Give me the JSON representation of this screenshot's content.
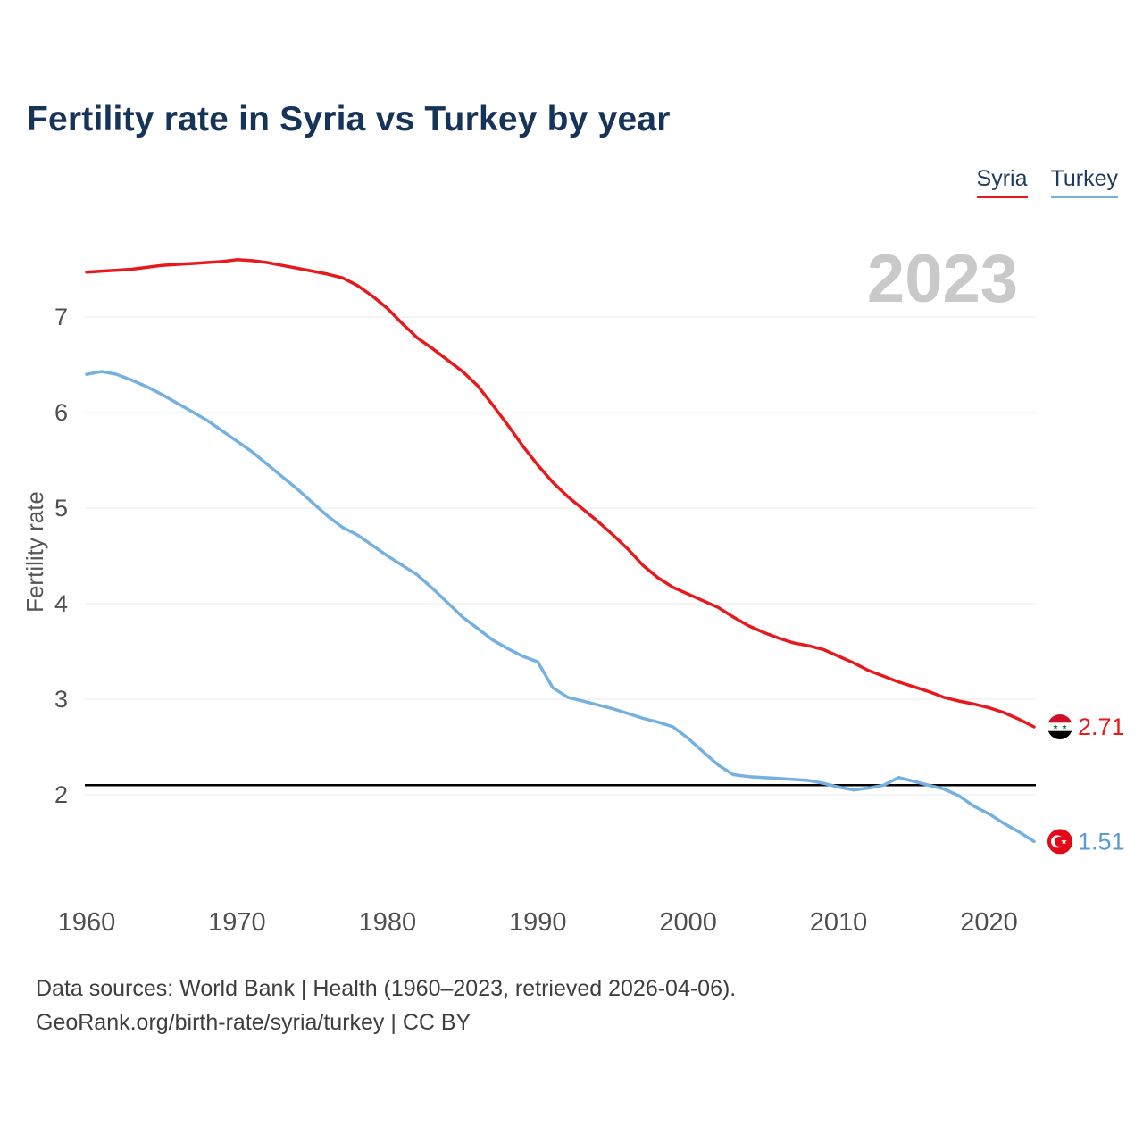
{
  "header": {
    "title": "Fertility rate in Syria vs Turkey by year"
  },
  "legend": [
    {
      "label": "Syria",
      "color": "#e8191d"
    },
    {
      "label": "Turkey",
      "color": "#74b0e0"
    }
  ],
  "chart_data": {
    "type": "line",
    "title": "Fertility rate in Syria vs Turkey by year",
    "xlabel": "",
    "ylabel": "Fertility rate",
    "watermark_year": "2023",
    "legend_position": "top-right",
    "grid": "horizontal",
    "x_ticks": [
      1960,
      1970,
      1980,
      1990,
      2000,
      2010,
      2020
    ],
    "y_ticks": [
      2,
      3,
      4,
      5,
      6,
      7
    ],
    "xlim": [
      1960,
      2023
    ],
    "ylim": [
      1.4,
      7.9
    ],
    "replacement_line": 2.1,
    "years": [
      1960,
      1961,
      1962,
      1963,
      1964,
      1965,
      1966,
      1967,
      1968,
      1969,
      1970,
      1971,
      1972,
      1973,
      1974,
      1975,
      1976,
      1977,
      1978,
      1979,
      1980,
      1981,
      1982,
      1983,
      1984,
      1985,
      1986,
      1987,
      1988,
      1989,
      1990,
      1991,
      1992,
      1993,
      1994,
      1995,
      1996,
      1997,
      1998,
      1999,
      2000,
      2001,
      2002,
      2003,
      2004,
      2005,
      2006,
      2007,
      2008,
      2009,
      2010,
      2011,
      2012,
      2013,
      2014,
      2015,
      2016,
      2017,
      2018,
      2019,
      2020,
      2021,
      2022,
      2023
    ],
    "series": [
      {
        "name": "Syria",
        "color": "#e8191d",
        "label_color": "#e8191d",
        "flag": "syria",
        "end_label": "2.71",
        "values": [
          7.47,
          7.48,
          7.49,
          7.5,
          7.52,
          7.54,
          7.55,
          7.56,
          7.57,
          7.58,
          7.6,
          7.59,
          7.57,
          7.54,
          7.51,
          7.48,
          7.45,
          7.41,
          7.33,
          7.22,
          7.09,
          6.93,
          6.78,
          6.67,
          6.55,
          6.43,
          6.28,
          6.08,
          5.87,
          5.65,
          5.45,
          5.27,
          5.12,
          4.99,
          4.86,
          4.72,
          4.57,
          4.4,
          4.27,
          4.17,
          4.1,
          4.03,
          3.96,
          3.86,
          3.77,
          3.7,
          3.64,
          3.59,
          3.56,
          3.52,
          3.45,
          3.38,
          3.3,
          3.24,
          3.18,
          3.13,
          3.08,
          3.02,
          2.98,
          2.95,
          2.91,
          2.86,
          2.79,
          2.71
        ]
      },
      {
        "name": "Turkey",
        "color": "#74b0e0",
        "label_color": "#5b9bd5",
        "flag": "turkey",
        "end_label": "1.51",
        "values": [
          6.4,
          6.43,
          6.4,
          6.34,
          6.27,
          6.19,
          6.1,
          6.01,
          5.92,
          5.81,
          5.7,
          5.59,
          5.46,
          5.33,
          5.2,
          5.06,
          4.92,
          4.8,
          4.72,
          4.61,
          4.5,
          4.4,
          4.3,
          4.16,
          4.01,
          3.86,
          3.74,
          3.62,
          3.53,
          3.45,
          3.39,
          3.12,
          3.02,
          2.98,
          2.94,
          2.9,
          2.85,
          2.8,
          2.76,
          2.71,
          2.59,
          2.45,
          2.31,
          2.21,
          2.19,
          2.18,
          2.17,
          2.16,
          2.15,
          2.12,
          2.08,
          2.05,
          2.07,
          2.1,
          2.18,
          2.14,
          2.1,
          2.06,
          1.99,
          1.88,
          1.8,
          1.7,
          1.61,
          1.51
        ]
      }
    ]
  },
  "footer": {
    "line1": "Data sources: World Bank | Health (1960–2023, retrieved 2026-04-06).",
    "line2": "GeoRank.org/birth-rate/syria/turkey | CC BY"
  }
}
